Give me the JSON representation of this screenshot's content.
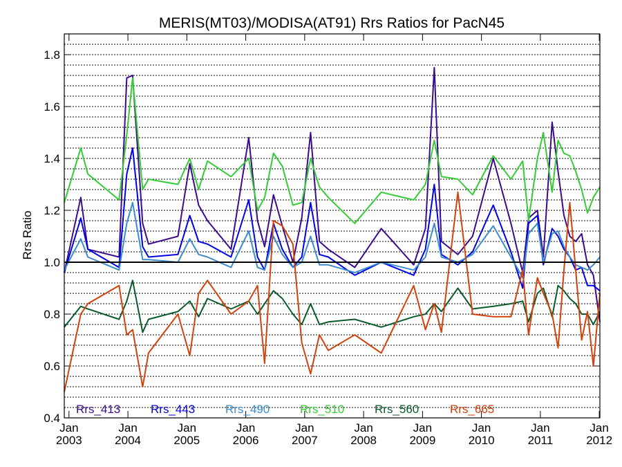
{
  "chart_data": {
    "type": "line",
    "title": "MERIS(MT03)/MODISA(AT91)  Rrs Ratios for PacN45",
    "ylabel": "Rrs Ratio",
    "xlabel": "",
    "xlim": [
      2002.92,
      2012.01
    ],
    "ylim": [
      0.4,
      1.88
    ],
    "y_ticks": [
      {
        "value": 0.4,
        "label": "0.4"
      },
      {
        "value": 0.6,
        "label": "0.6"
      },
      {
        "value": 0.8,
        "label": "0.8"
      },
      {
        "value": 1.0,
        "label": "1.0"
      },
      {
        "value": 1.2,
        "label": "1.2"
      },
      {
        "value": 1.4,
        "label": "1.4"
      },
      {
        "value": 1.6,
        "label": "1.6"
      },
      {
        "value": 1.8,
        "label": "1.8"
      }
    ],
    "x_ticks": [
      {
        "value": 2003.0,
        "month": "Jan",
        "year": "2003"
      },
      {
        "value": 2004.0,
        "month": "Jan",
        "year": "2004"
      },
      {
        "value": 2005.0,
        "month": "Jan",
        "year": "2005"
      },
      {
        "value": 2006.0,
        "month": "Jan",
        "year": "2006"
      },
      {
        "value": 2007.0,
        "month": "Jan",
        "year": "2007"
      },
      {
        "value": 2008.0,
        "month": "Jan",
        "year": "2008"
      },
      {
        "value": 2009.0,
        "month": "Jan",
        "year": "2009"
      },
      {
        "value": 2010.0,
        "month": "Jan",
        "year": "2010"
      },
      {
        "value": 2011.0,
        "month": "Jan",
        "year": "2011"
      },
      {
        "value": 2012.0,
        "month": "Jan",
        "year": "2012"
      }
    ],
    "grid": "horizontal dotted",
    "reference_line": 1.0,
    "legend_position": "bottom",
    "series": [
      {
        "name": "Rrs_413",
        "color": "#3b0a8c",
        "x": [
          2002.92,
          2003.2,
          2003.32,
          2003.85,
          2003.98,
          2004.08,
          2004.25,
          2004.35,
          2004.85,
          2005.05,
          2005.2,
          2005.35,
          2005.75,
          2006.05,
          2006.2,
          2006.32,
          2006.47,
          2006.62,
          2006.8,
          2006.95,
          2007.1,
          2007.25,
          2007.4,
          2007.85,
          2008.3,
          2008.85,
          2009.05,
          2009.2,
          2009.32,
          2009.6,
          2009.85,
          2010.2,
          2010.5,
          2010.7,
          2010.8,
          2010.95,
          2011.05,
          2011.2,
          2011.3,
          2011.4,
          2011.5,
          2011.6,
          2011.7,
          2011.8,
          2011.9,
          2012.01
        ],
        "y": [
          0.96,
          1.25,
          1.05,
          1.02,
          1.71,
          1.72,
          1.15,
          1.07,
          1.1,
          1.38,
          1.22,
          1.16,
          1.05,
          1.48,
          1.16,
          1.06,
          1.26,
          1.14,
          1.0,
          1.17,
          1.5,
          1.08,
          1.05,
          0.98,
          1.13,
          0.99,
          1.13,
          1.75,
          1.08,
          1.03,
          1.1,
          1.4,
          1.15,
          0.96,
          1.17,
          1.2,
          1.02,
          1.54,
          1.35,
          1.18,
          1.1,
          1.08,
          1.11,
          0.99,
          0.95,
          0.77
        ]
      },
      {
        "name": "Rrs_443",
        "color": "#0000e6",
        "x": [
          2002.92,
          2003.2,
          2003.32,
          2003.85,
          2003.98,
          2004.08,
          2004.25,
          2004.35,
          2004.85,
          2005.05,
          2005.2,
          2005.35,
          2005.75,
          2006.05,
          2006.2,
          2006.32,
          2006.47,
          2006.62,
          2006.8,
          2006.95,
          2007.1,
          2007.25,
          2007.4,
          2007.85,
          2008.3,
          2008.85,
          2009.05,
          2009.2,
          2009.32,
          2009.6,
          2009.85,
          2010.2,
          2010.5,
          2010.7,
          2010.8,
          2010.95,
          2011.05,
          2011.2,
          2011.3,
          2011.4,
          2011.5,
          2011.6,
          2011.7,
          2011.8,
          2011.9,
          2012.01
        ],
        "y": [
          0.96,
          1.17,
          1.05,
          0.98,
          1.34,
          1.44,
          1.06,
          1.02,
          1.03,
          1.18,
          1.08,
          1.07,
          1.02,
          1.24,
          1.02,
          0.97,
          1.15,
          1.05,
          0.98,
          1.02,
          1.23,
          1.03,
          1.02,
          0.95,
          1.0,
          0.95,
          1.05,
          1.3,
          1.03,
          0.99,
          1.04,
          1.22,
          1.04,
          0.9,
          1.15,
          1.18,
          0.99,
          1.13,
          1.1,
          1.05,
          1.02,
          0.97,
          0.98,
          0.91,
          0.91,
          0.89
        ]
      },
      {
        "name": "Rrs_490",
        "color": "#3a8ccc",
        "x": [
          2002.92,
          2003.2,
          2003.32,
          2003.85,
          2003.98,
          2004.08,
          2004.25,
          2004.35,
          2004.85,
          2005.05,
          2005.2,
          2005.35,
          2005.75,
          2006.05,
          2006.2,
          2006.32,
          2006.47,
          2006.62,
          2006.8,
          2006.95,
          2007.1,
          2007.25,
          2007.4,
          2007.85,
          2008.3,
          2008.85,
          2009.05,
          2009.2,
          2009.32,
          2009.6,
          2009.85,
          2010.2,
          2010.5,
          2010.7,
          2010.8,
          2010.95,
          2011.05,
          2011.2,
          2011.3,
          2011.4,
          2011.5,
          2011.6,
          2011.7,
          2011.8,
          2011.9,
          2012.01
        ],
        "y": [
          0.97,
          1.09,
          1.02,
          0.97,
          1.15,
          1.23,
          1.01,
          1.01,
          1.0,
          1.09,
          1.03,
          1.02,
          0.98,
          1.12,
          0.98,
          0.97,
          1.1,
          1.03,
          0.98,
          1.0,
          1.1,
          0.99,
          0.99,
          0.96,
          1.0,
          0.97,
          1.02,
          1.15,
          1.02,
          1.0,
          1.03,
          1.14,
          1.02,
          0.94,
          1.11,
          1.15,
          1.0,
          1.11,
          1.12,
          1.06,
          1.02,
          0.99,
          0.98,
          0.97,
          0.99,
          1.02
        ]
      },
      {
        "name": "Rrs_510",
        "color": "#33cc33",
        "x": [
          2002.92,
          2003.2,
          2003.32,
          2003.85,
          2003.98,
          2004.08,
          2004.25,
          2004.35,
          2004.85,
          2005.05,
          2005.2,
          2005.35,
          2005.75,
          2006.05,
          2006.2,
          2006.32,
          2006.47,
          2006.62,
          2006.8,
          2006.95,
          2007.1,
          2007.25,
          2007.4,
          2007.85,
          2008.3,
          2008.85,
          2009.05,
          2009.2,
          2009.32,
          2009.6,
          2009.85,
          2010.2,
          2010.5,
          2010.7,
          2010.8,
          2010.95,
          2011.05,
          2011.2,
          2011.3,
          2011.4,
          2011.5,
          2011.6,
          2011.7,
          2011.8,
          2011.9,
          2012.01
        ],
        "y": [
          1.23,
          1.44,
          1.34,
          1.24,
          1.49,
          1.71,
          1.28,
          1.32,
          1.3,
          1.4,
          1.28,
          1.39,
          1.33,
          1.4,
          1.2,
          1.25,
          1.42,
          1.37,
          1.22,
          1.23,
          1.4,
          1.29,
          1.25,
          1.15,
          1.27,
          1.24,
          1.3,
          1.47,
          1.33,
          1.32,
          1.26,
          1.41,
          1.32,
          1.39,
          1.16,
          1.4,
          1.5,
          1.27,
          1.47,
          1.42,
          1.41,
          1.35,
          1.28,
          1.19,
          1.25,
          1.29
        ]
      },
      {
        "name": "Rrs_560",
        "color": "#0a5a2a",
        "x": [
          2002.92,
          2003.2,
          2003.32,
          2003.85,
          2003.98,
          2004.08,
          2004.25,
          2004.35,
          2004.85,
          2005.05,
          2005.2,
          2005.35,
          2005.75,
          2006.05,
          2006.2,
          2006.32,
          2006.47,
          2006.62,
          2006.8,
          2006.95,
          2007.1,
          2007.25,
          2007.4,
          2007.85,
          2008.3,
          2008.85,
          2009.05,
          2009.2,
          2009.32,
          2009.6,
          2009.85,
          2010.2,
          2010.5,
          2010.7,
          2010.8,
          2010.95,
          2011.05,
          2011.2,
          2011.3,
          2011.4,
          2011.5,
          2011.6,
          2011.7,
          2011.8,
          2011.9,
          2012.01
        ],
        "y": [
          0.75,
          0.83,
          0.82,
          0.78,
          0.85,
          0.93,
          0.73,
          0.78,
          0.81,
          0.85,
          0.79,
          0.86,
          0.82,
          0.85,
          0.8,
          0.84,
          0.89,
          0.86,
          0.8,
          0.76,
          0.84,
          0.76,
          0.77,
          0.78,
          0.75,
          0.79,
          0.8,
          0.84,
          0.81,
          0.9,
          0.82,
          0.83,
          0.84,
          0.85,
          0.77,
          0.88,
          0.9,
          0.79,
          0.91,
          0.89,
          0.86,
          0.84,
          0.8,
          0.8,
          0.76,
          0.81
        ]
      },
      {
        "name": "Rrs_665",
        "color": "#d4400a",
        "x": [
          2002.92,
          2003.2,
          2003.32,
          2003.85,
          2003.98,
          2004.08,
          2004.25,
          2004.35,
          2004.85,
          2005.05,
          2005.2,
          2005.35,
          2005.75,
          2006.05,
          2006.2,
          2006.32,
          2006.47,
          2006.62,
          2006.8,
          2006.95,
          2007.1,
          2007.25,
          2007.4,
          2007.85,
          2008.3,
          2008.85,
          2009.05,
          2009.2,
          2009.32,
          2009.6,
          2009.85,
          2010.2,
          2010.5,
          2010.7,
          2010.8,
          2010.95,
          2011.05,
          2011.2,
          2011.3,
          2011.4,
          2011.5,
          2011.6,
          2011.7,
          2011.8,
          2011.9,
          2012.01
        ],
        "y": [
          0.5,
          0.8,
          0.84,
          0.91,
          0.72,
          0.74,
          0.52,
          0.65,
          0.8,
          0.64,
          0.88,
          0.93,
          0.8,
          0.85,
          0.91,
          0.61,
          1.16,
          1.14,
          1.07,
          0.69,
          0.57,
          0.72,
          0.66,
          0.72,
          0.65,
          0.91,
          0.74,
          0.84,
          0.73,
          1.27,
          0.8,
          0.79,
          0.79,
          0.97,
          0.72,
          0.94,
          0.88,
          0.8,
          0.67,
          0.97,
          1.23,
          0.97,
          0.7,
          0.81,
          0.6,
          0.88
        ]
      }
    ]
  }
}
